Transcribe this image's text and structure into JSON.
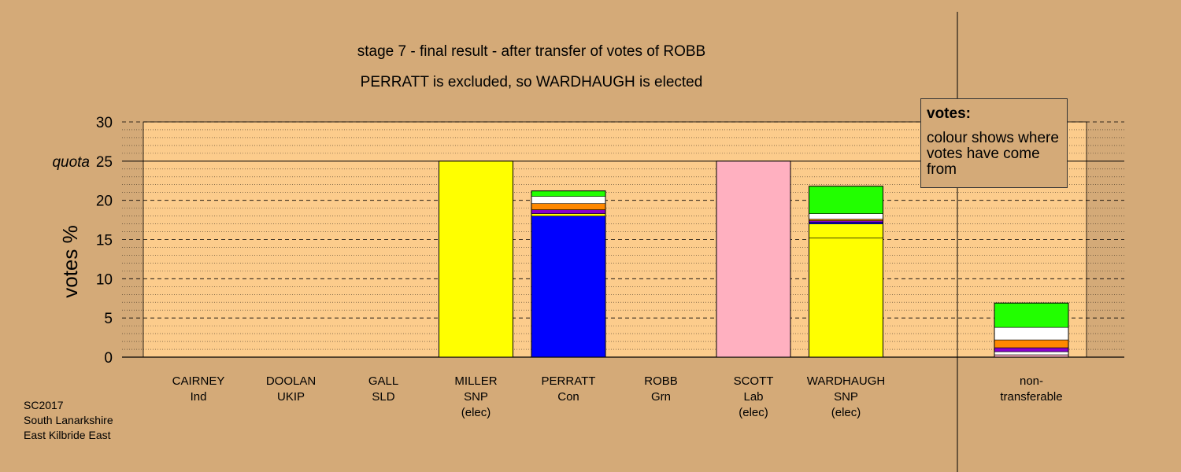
{
  "title_line1": "stage 7 - final result - after transfer of votes of ROBB",
  "title_line2": "PERRATT is excluded, so WARDHAUGH is elected",
  "legend": {
    "title": "votes:",
    "text": "colour shows where votes have come from"
  },
  "footer": [
    "SC2017",
    "South Lanarkshire",
    "East Kilbride East"
  ],
  "colors": {
    "background": "#d4aa78",
    "plot": "#fccc8c",
    "SNP": "#ffff00",
    "Con": "#0000ff",
    "Lab": "#ffb0c0",
    "Grn": "#22ff00",
    "UKIP": "#8800cc",
    "Ind": "#ffffff",
    "SLD": "#ff8800"
  },
  "chart_data": {
    "type": "bar",
    "stacked": true,
    "ylabel": "votes %",
    "ylim": [
      0,
      30
    ],
    "yticks": [
      0,
      5,
      10,
      15,
      20,
      25,
      30
    ],
    "quota": 25,
    "quota_label": "quota",
    "grid": true,
    "legend_position": "top-right",
    "candidates": [
      {
        "name": "CAIRNEY",
        "party": "Ind",
        "status": "",
        "segments": []
      },
      {
        "name": "DOOLAN",
        "party": "UKIP",
        "status": "",
        "segments": []
      },
      {
        "name": "GALL",
        "party": "SLD",
        "status": "",
        "segments": []
      },
      {
        "name": "MILLER",
        "party": "SNP",
        "status": "(elec)",
        "segments": [
          {
            "from": "SNP",
            "value": 25.0
          }
        ]
      },
      {
        "name": "PERRATT",
        "party": "Con",
        "status": "",
        "segments": [
          {
            "from": "Con",
            "value": 18.0
          },
          {
            "from": "SNP",
            "value": 0.3
          },
          {
            "from": "UKIP",
            "value": 0.5
          },
          {
            "from": "SLD",
            "value": 0.8
          },
          {
            "from": "Ind",
            "value": 0.9
          },
          {
            "from": "Grn",
            "value": 0.7
          }
        ]
      },
      {
        "name": "ROBB",
        "party": "Grn",
        "status": "",
        "segments": []
      },
      {
        "name": "SCOTT",
        "party": "Lab",
        "status": "(elec)",
        "segments": [
          {
            "from": "Lab",
            "value": 25.0
          }
        ]
      },
      {
        "name": "WARDHAUGH",
        "party": "SNP",
        "status": "(elec)",
        "segments": [
          {
            "from": "SNP",
            "value": 15.2
          },
          {
            "from": "SNP",
            "value": 1.8
          },
          {
            "from": "Con",
            "value": 0.2
          },
          {
            "from": "UKIP",
            "value": 0.2
          },
          {
            "from": "SLD",
            "value": 0.2
          },
          {
            "from": "Ind",
            "value": 0.7
          },
          {
            "from": "Grn",
            "value": 3.5
          }
        ]
      }
    ],
    "non_transferable": {
      "label": [
        "non-",
        "transferable"
      ],
      "segments": [
        {
          "from": "Lab",
          "value": 0.3
        },
        {
          "from": "Ind",
          "value": 0.4
        },
        {
          "from": "UKIP",
          "value": 0.5
        },
        {
          "from": "SLD",
          "value": 1.0
        },
        {
          "from": "Ind",
          "value": 1.6
        },
        {
          "from": "Grn",
          "value": 3.1
        }
      ]
    }
  }
}
